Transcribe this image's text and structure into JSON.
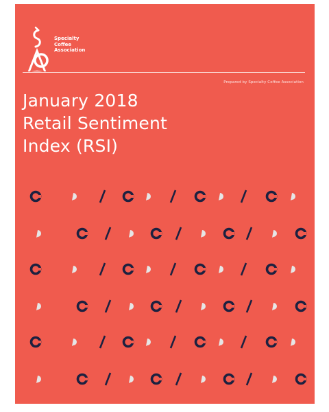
{
  "organization": {
    "name_lines": [
      "Specialty",
      "Coffee",
      "Association"
    ]
  },
  "prepared_by": "Prepared by Specialty Coffee Association",
  "title_lines": [
    "January 2018",
    "Retail Sentiment",
    "Index (RSI)"
  ],
  "colors": {
    "background": "#f05b4e",
    "text": "#ffffff",
    "ring": "#1c2140",
    "drop": "#e6e6e6",
    "slash": "#1c2140"
  },
  "pattern": {
    "rows": [
      "odd",
      "even",
      "odd",
      "even",
      "odd",
      "even"
    ],
    "row_a_sequence": [
      "ring-icon",
      "drop-icon",
      "slash-icon",
      "ring-icon",
      "drop-icon",
      "slash-icon",
      "ring-icon",
      "drop-icon",
      "slash-icon",
      "ring-icon",
      "drop-icon"
    ],
    "row_b_sequence": [
      "drop-icon",
      "ring-icon",
      "slash-icon",
      "drop-icon",
      "ring-icon",
      "slash-icon",
      "drop-icon",
      "ring-icon",
      "slash-icon",
      "drop-icon",
      "ring-icon"
    ]
  }
}
